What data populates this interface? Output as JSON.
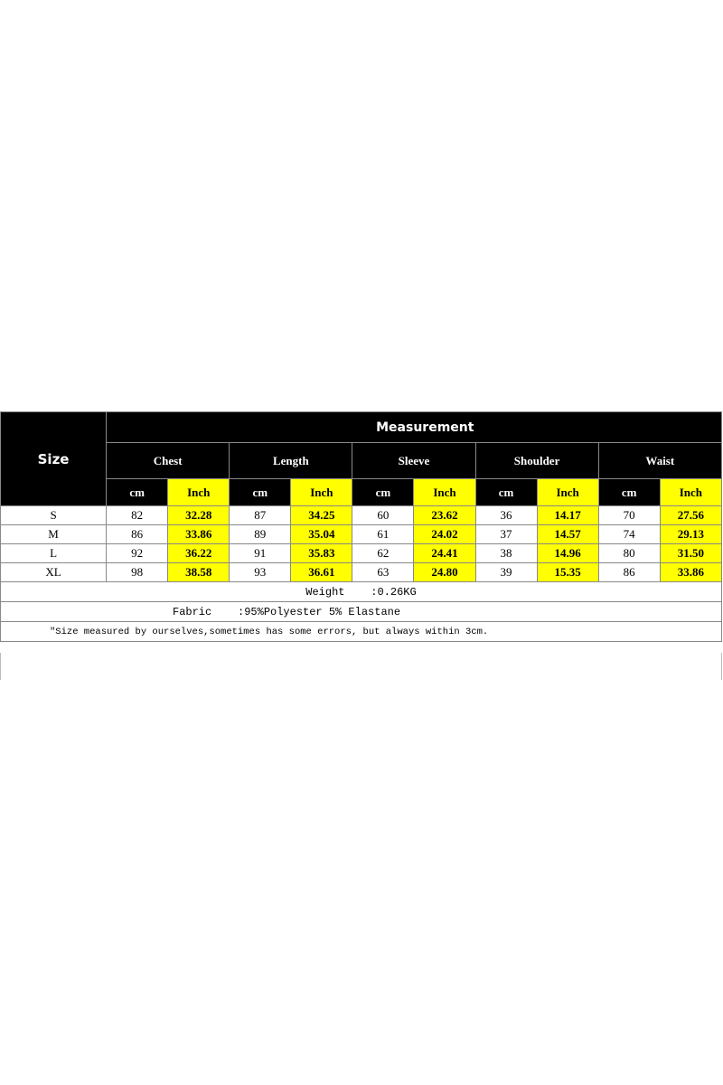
{
  "header": {
    "size": "Size",
    "measurement": "Measurement",
    "groups": [
      "Chest",
      "Length",
      "Sleeve",
      "Shoulder",
      "Waist"
    ],
    "unit_cm": "cm",
    "unit_inch": "Inch"
  },
  "rows": [
    {
      "size": "S",
      "values": [
        "82",
        "32.28",
        "87",
        "34.25",
        "60",
        "23.62",
        "36",
        "14.17",
        "70",
        "27.56"
      ]
    },
    {
      "size": "M",
      "values": [
        "86",
        "33.86",
        "89",
        "35.04",
        "61",
        "24.02",
        "37",
        "14.57",
        "74",
        "29.13"
      ]
    },
    {
      "size": "L",
      "values": [
        "92",
        "36.22",
        "91",
        "35.83",
        "62",
        "24.41",
        "38",
        "14.96",
        "80",
        "31.50"
      ]
    },
    {
      "size": "XL",
      "values": [
        "98",
        "38.58",
        "93",
        "36.61",
        "63",
        "24.80",
        "39",
        "15.35",
        "86",
        "33.86"
      ]
    }
  ],
  "weight": "Weight    :0.26KG",
  "fabric": "Fabric    :95%Polyester 5% Elastane",
  "note": "\"Size measured by ourselves,sometimes has some errors, but always within 3cm.",
  "colors": {
    "header_bg": "#000000",
    "inch_bg": "#ffff00"
  }
}
